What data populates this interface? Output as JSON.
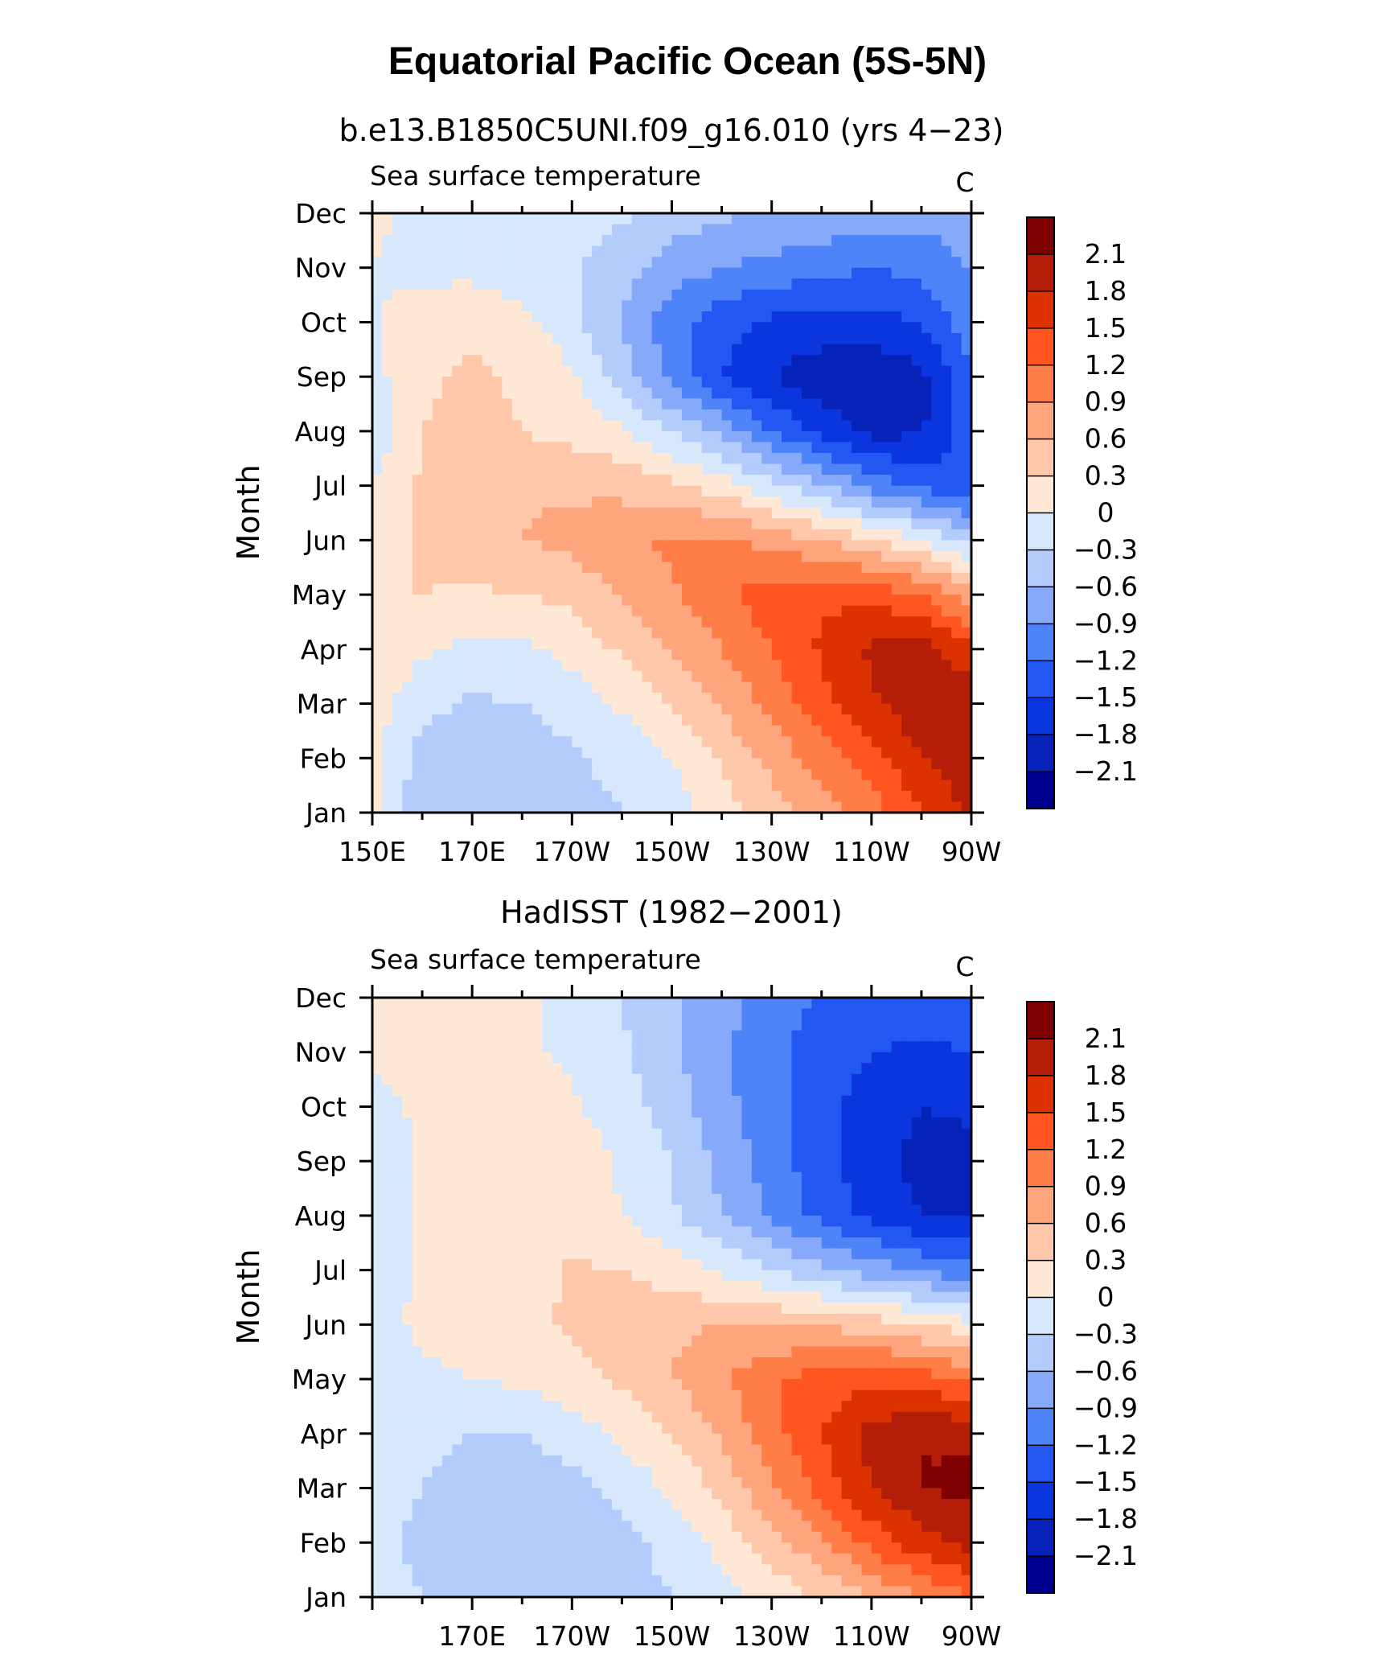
{
  "figure_title": "Equatorial Pacific Ocean (5S-5N)",
  "colorbar": {
    "labels": [
      "2.1",
      "1.8",
      "1.5",
      "1.2",
      "0.9",
      "0.6",
      "0.3",
      "0",
      "−0.3",
      "−0.6",
      "−0.9",
      "−1.2",
      "−1.5",
      "−1.8",
      "−2.1"
    ],
    "colors": [
      "#7f0000",
      "#b41e08",
      "#dc3200",
      "#ff5520",
      "#ff7d46",
      "#ffa57d",
      "#ffc8aa",
      "#ffe9d6",
      "#d7e8fd",
      "#b3ccfb",
      "#86a9fa",
      "#4f83f8",
      "#2357f2",
      "#0b36de",
      "#0722b8",
      "#00008f"
    ]
  },
  "chart_data": [
    {
      "type": "heatmap",
      "title": "b.e13.B1850C5UNI.f09_g16.010 (yrs 4−23)",
      "left_label": "Sea surface temperature",
      "units": "C",
      "ylabel": "Month",
      "xlabel": "",
      "x_ticks": [
        "150E",
        "170E",
        "170W",
        "150W",
        "130W",
        "110W",
        "90W"
      ],
      "x_tick_lon": [
        150,
        170,
        190,
        210,
        230,
        250,
        270
      ],
      "xlim": [
        150,
        270
      ],
      "y_ticks": [
        "Jan",
        "Feb",
        "Mar",
        "Apr",
        "May",
        "Jun",
        "Jul",
        "Aug",
        "Sep",
        "Oct",
        "Nov",
        "Dec"
      ],
      "levels": [
        -2.1,
        -1.8,
        -1.5,
        -1.2,
        -0.9,
        -0.6,
        -0.3,
        0,
        0.3,
        0.6,
        0.9,
        1.2,
        1.5,
        1.8,
        2.1
      ],
      "lon_grid": [
        150,
        160,
        170,
        180,
        190,
        200,
        210,
        220,
        230,
        240,
        250,
        260,
        270
      ],
      "values": [
        [
          0.05,
          -0.5,
          -0.6,
          -0.55,
          -0.4,
          -0.3,
          -0.15,
          0.15,
          0.45,
          0.75,
          1.05,
          1.45,
          1.9
        ],
        [
          0.1,
          -0.45,
          -0.55,
          -0.5,
          -0.35,
          -0.2,
          0.0,
          0.35,
          0.7,
          1.05,
          1.4,
          1.8,
          2.0
        ],
        [
          0.15,
          -0.2,
          -0.35,
          -0.3,
          -0.15,
          0.05,
          0.3,
          0.65,
          1.0,
          1.4,
          1.75,
          2.0,
          2.0
        ],
        [
          0.2,
          0.05,
          -0.1,
          -0.05,
          0.1,
          0.35,
          0.6,
          0.9,
          1.2,
          1.55,
          1.85,
          1.95,
          1.6
        ],
        [
          0.3,
          0.3,
          0.25,
          0.3,
          0.4,
          0.6,
          0.85,
          1.15,
          1.35,
          1.45,
          1.4,
          1.2,
          0.7
        ],
        [
          0.15,
          0.35,
          0.45,
          0.6,
          0.7,
          0.85,
          0.95,
          0.95,
          0.8,
          0.6,
          0.3,
          0.0,
          -0.4
        ],
        [
          0.05,
          0.35,
          0.45,
          0.55,
          0.55,
          0.5,
          0.35,
          0.15,
          -0.2,
          -0.6,
          -1.0,
          -1.3,
          -1.5
        ],
        [
          -0.3,
          0.3,
          0.4,
          0.3,
          0.2,
          0.05,
          -0.3,
          -0.7,
          -1.2,
          -1.6,
          -1.9,
          -1.85,
          -1.3
        ],
        [
          -0.1,
          0.25,
          0.35,
          0.25,
          0.05,
          -0.45,
          -1.0,
          -1.5,
          -1.8,
          -2.0,
          -2.05,
          -1.9,
          -1.2
        ],
        [
          -0.05,
          0.2,
          0.25,
          0.1,
          -0.2,
          -0.65,
          -1.05,
          -1.4,
          -1.55,
          -1.6,
          -1.6,
          -1.5,
          -1.0
        ],
        [
          0.0,
          -0.1,
          -0.1,
          -0.2,
          -0.25,
          -0.45,
          -0.75,
          -0.9,
          -1.0,
          -1.1,
          -1.2,
          -1.1,
          -0.9
        ],
        [
          0.1,
          -0.15,
          -0.2,
          -0.2,
          -0.2,
          -0.25,
          -0.45,
          -0.55,
          -0.6,
          -0.65,
          -0.75,
          -0.8,
          -0.7
        ]
      ]
    },
    {
      "type": "heatmap",
      "title": "HadISST (1982−2001)",
      "left_label": "Sea surface temperature",
      "units": "C",
      "ylabel": "Month",
      "xlabel": "",
      "x_ticks": [
        "170E",
        "170W",
        "150W",
        "130W",
        "110W",
        "90W"
      ],
      "x_tick_lon": [
        170,
        190,
        210,
        230,
        250,
        270
      ],
      "xlim": [
        150,
        270
      ],
      "y_ticks": [
        "Jan",
        "Feb",
        "Mar",
        "Apr",
        "May",
        "Jun",
        "Jul",
        "Aug",
        "Sep",
        "Oct",
        "Nov",
        "Dec"
      ],
      "levels": [
        -2.1,
        -1.8,
        -1.5,
        -1.2,
        -0.9,
        -0.6,
        -0.3,
        0,
        0.3,
        0.6,
        0.9,
        1.2,
        1.5,
        1.8,
        2.1
      ],
      "lon_grid": [
        150,
        160,
        170,
        180,
        190,
        200,
        210,
        220,
        230,
        240,
        250,
        260,
        270
      ],
      "values": [
        [
          -0.2,
          -0.3,
          -0.45,
          -0.5,
          -0.45,
          -0.4,
          -0.3,
          -0.1,
          0.1,
          0.35,
          0.6,
          0.9,
          1.2
        ],
        [
          -0.25,
          -0.35,
          -0.55,
          -0.55,
          -0.5,
          -0.4,
          -0.2,
          0.1,
          0.45,
          0.85,
          1.3,
          1.7,
          1.9
        ],
        [
          -0.2,
          -0.3,
          -0.5,
          -0.5,
          -0.4,
          -0.2,
          0.05,
          0.4,
          0.85,
          1.3,
          1.8,
          2.1,
          2.2
        ],
        [
          -0.15,
          -0.2,
          -0.3,
          -0.3,
          -0.15,
          0.05,
          0.3,
          0.65,
          1.1,
          1.5,
          1.9,
          2.1,
          2.0
        ],
        [
          -0.1,
          -0.05,
          0.0,
          0.05,
          0.2,
          0.35,
          0.6,
          0.85,
          1.15,
          1.35,
          1.45,
          1.35,
          1.1
        ],
        [
          -0.1,
          0.05,
          0.1,
          0.2,
          0.35,
          0.45,
          0.55,
          0.6,
          0.6,
          0.55,
          0.45,
          0.3,
          0.1
        ],
        [
          -0.15,
          0.05,
          0.1,
          0.15,
          0.35,
          0.3,
          0.15,
          -0.05,
          -0.3,
          -0.55,
          -0.75,
          -0.95,
          -1.1
        ],
        [
          -0.3,
          0.05,
          0.15,
          0.2,
          0.15,
          0.0,
          -0.25,
          -0.6,
          -0.95,
          -1.3,
          -1.6,
          -1.8,
          -1.85
        ],
        [
          -0.2,
          0.05,
          0.2,
          0.3,
          0.15,
          -0.05,
          -0.3,
          -0.7,
          -1.05,
          -1.4,
          -1.7,
          -1.9,
          -1.9
        ],
        [
          -0.1,
          0.05,
          0.15,
          0.15,
          0.05,
          -0.15,
          -0.45,
          -0.8,
          -1.1,
          -1.4,
          -1.65,
          -1.8,
          -1.75
        ],
        [
          0.05,
          0.1,
          0.1,
          0.05,
          -0.05,
          -0.25,
          -0.55,
          -0.85,
          -1.1,
          -1.35,
          -1.5,
          -1.55,
          -1.5
        ],
        [
          0.1,
          0.1,
          0.1,
          0.05,
          -0.1,
          -0.3,
          -0.55,
          -0.8,
          -1.05,
          -1.25,
          -1.35,
          -1.4,
          -1.3
        ]
      ]
    }
  ]
}
